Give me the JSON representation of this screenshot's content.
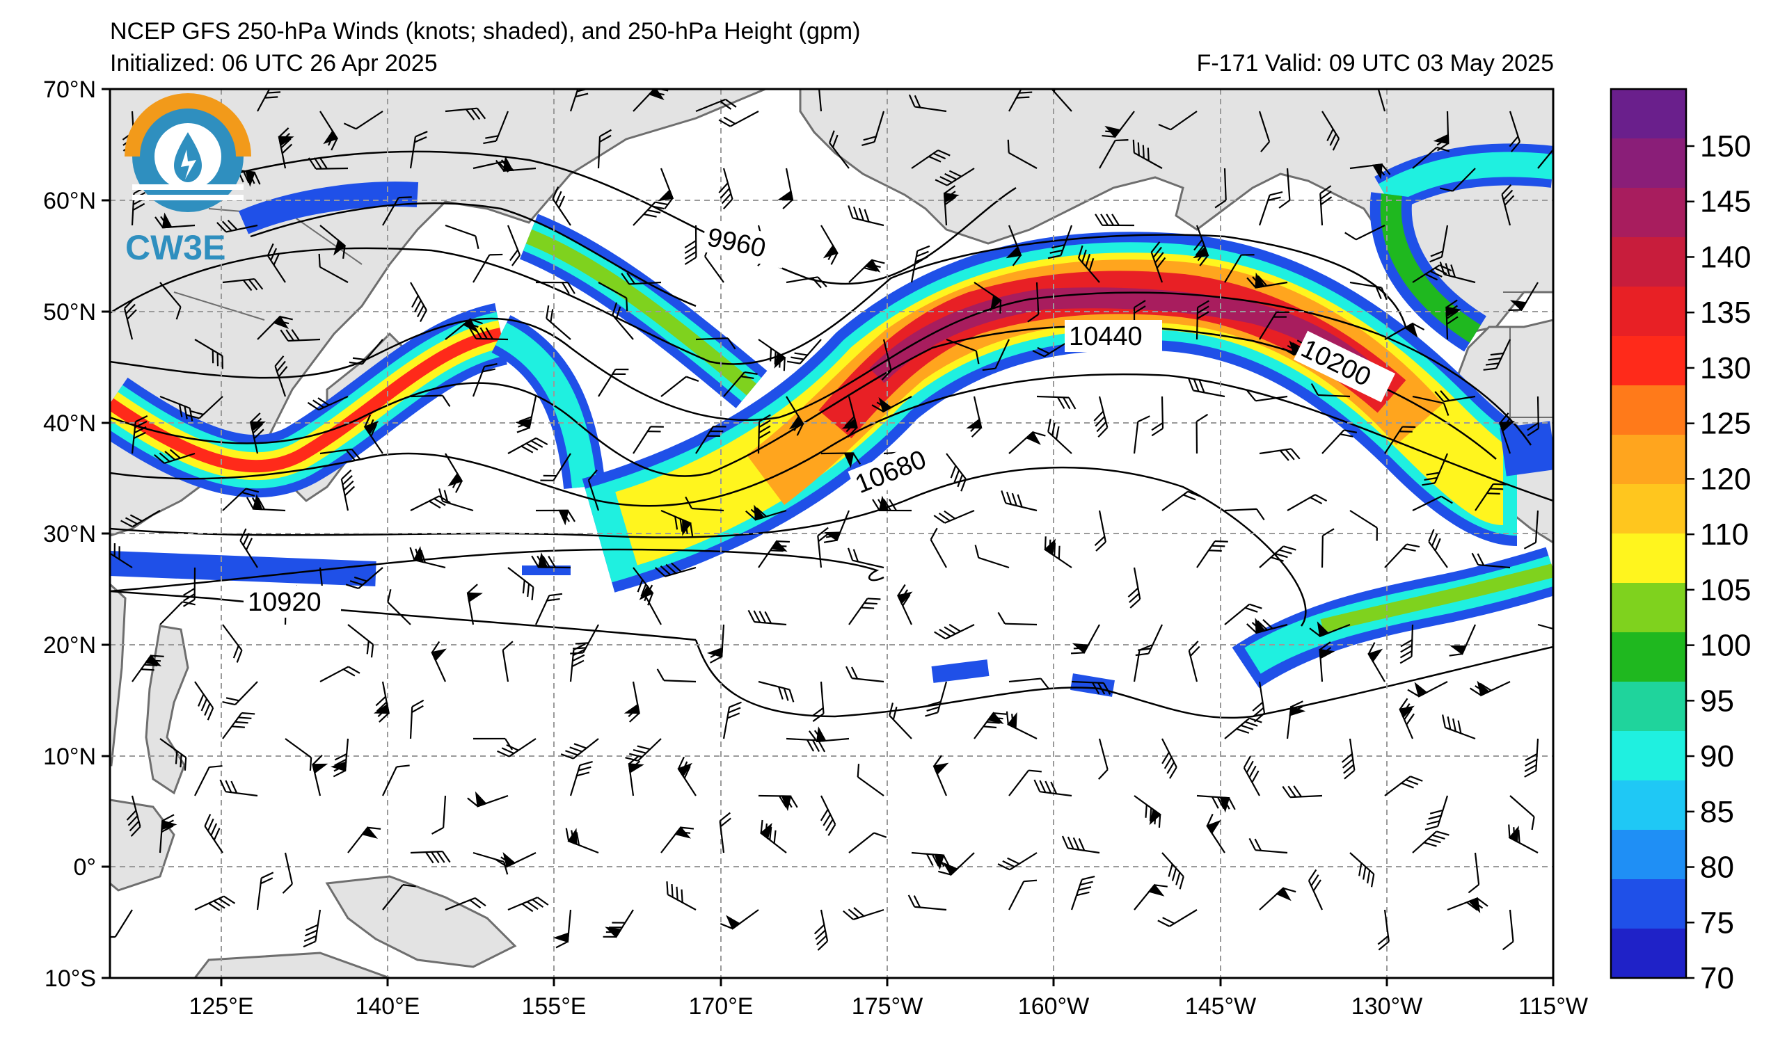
{
  "header": {
    "title": "NCEP GFS 250-hPa Winds (knots; shaded), and 250-hPa Height (gpm)",
    "initialized": "Initialized: 06 UTC 26 Apr 2025",
    "valid": "F-171  Valid: 09 UTC 03 May 2025"
  },
  "map": {
    "lat_labels": [
      "70°N",
      "60°N",
      "50°N",
      "40°N",
      "30°N",
      "20°N",
      "10°N",
      "0°",
      "10°S"
    ],
    "lon_labels": [
      "125°E",
      "140°E",
      "155°E",
      "170°E",
      "175°W",
      "160°W",
      "145°W",
      "130°W",
      "115°W"
    ],
    "contour_labels": [
      "9960",
      "10440",
      "10200",
      "10680",
      "10920"
    ],
    "logo_text": "CW3E",
    "colors": {
      "land": "#e3e3e3",
      "coast": "#6e6e6e",
      "grid": "#9a9a9a"
    }
  },
  "colorbar": {
    "labels": [
      "150",
      "145",
      "140",
      "135",
      "130",
      "125",
      "120",
      "110",
      "105",
      "100",
      "95",
      "90",
      "85",
      "80",
      "75",
      "70"
    ],
    "colors_top_to_bottom": [
      "#6a1f8c",
      "#8a1e78",
      "#a81d5e",
      "#c81d3c",
      "#e82025",
      "#ff2a1a",
      "#ff7a1a",
      "#ffa51e",
      "#ffc61e",
      "#fff51e",
      "#7fd21e",
      "#1fb81f",
      "#1fd49c",
      "#1ff0e0",
      "#1fc8f5",
      "#1f8ff5",
      "#1f50e8",
      "#1f22c8"
    ]
  }
}
